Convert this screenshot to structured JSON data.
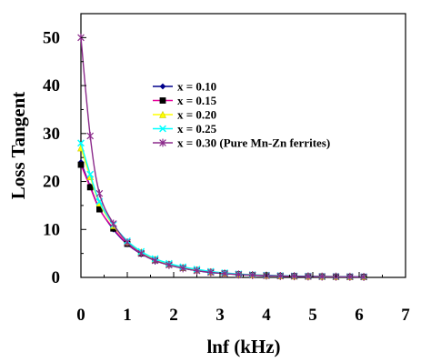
{
  "chart_data": {
    "type": "line",
    "xlabel": "lnf (kHz)",
    "ylabel": "Loss Tangent",
    "xlim": [
      0,
      7
    ],
    "ylim": [
      0,
      55
    ],
    "x_ticks": [
      "0",
      "1",
      "2",
      "3",
      "4",
      "5",
      "6",
      "7"
    ],
    "y_ticks": [
      "0",
      "10",
      "20",
      "30",
      "40",
      "50"
    ],
    "grid": false,
    "legend_position": "upper-middle",
    "series": [
      {
        "name": "x = 0.10",
        "color": "#00008b",
        "marker": "diamond",
        "x": [
          0.0,
          0.2,
          0.4,
          0.7,
          1.0,
          1.3,
          1.6,
          1.9,
          2.2,
          2.5,
          2.8,
          3.1,
          3.4,
          3.7,
          4.0,
          4.3,
          4.6,
          4.9,
          5.2,
          5.5,
          5.8,
          6.1
        ],
        "values": [
          24.0,
          19.0,
          14.3,
          10.0,
          6.9,
          4.9,
          3.5,
          2.6,
          1.9,
          1.4,
          1.0,
          0.8,
          0.6,
          0.45,
          0.35,
          0.3,
          0.25,
          0.2,
          0.18,
          0.15,
          0.13,
          0.1
        ]
      },
      {
        "name": "x = 0.15",
        "color": "#e6009a",
        "marker": "square",
        "x": [
          0.0,
          0.2,
          0.4,
          0.7,
          1.0,
          1.3,
          1.6,
          1.9,
          2.2,
          2.5,
          2.8,
          3.1,
          3.4,
          3.7,
          4.0,
          4.3,
          4.6,
          4.9,
          5.2,
          5.5,
          5.8,
          6.1
        ],
        "values": [
          23.5,
          18.8,
          14.2,
          10.2,
          7.0,
          5.0,
          3.6,
          2.7,
          2.0,
          1.5,
          1.1,
          0.85,
          0.65,
          0.5,
          0.4,
          0.32,
          0.27,
          0.22,
          0.19,
          0.16,
          0.14,
          0.12
        ]
      },
      {
        "name": "x = 0.20",
        "color": "#ffff00",
        "marker": "triangle",
        "x": [
          0.0,
          0.2,
          0.4,
          0.7,
          1.0,
          1.3,
          1.6,
          1.9,
          2.2,
          2.5,
          2.8,
          3.1,
          3.4,
          3.7,
          4.0,
          4.3,
          4.6,
          4.9,
          5.2,
          5.5,
          5.8,
          6.1
        ],
        "values": [
          27.0,
          21.0,
          15.5,
          10.8,
          7.4,
          5.3,
          3.8,
          2.8,
          2.1,
          1.6,
          1.2,
          0.9,
          0.7,
          0.55,
          0.45,
          0.35,
          0.28,
          0.23,
          0.2,
          0.17,
          0.15,
          0.13
        ]
      },
      {
        "name": "x = 0.25",
        "color": "#00ffff",
        "marker": "cross",
        "x": [
          0.0,
          0.2,
          0.4,
          0.7,
          1.0,
          1.3,
          1.6,
          1.9,
          2.2,
          2.5,
          2.8,
          3.1,
          3.4,
          3.7,
          4.0,
          4.3,
          4.6,
          4.9,
          5.2,
          5.5,
          5.8,
          6.1
        ],
        "values": [
          28.0,
          21.5,
          15.8,
          11.0,
          7.6,
          5.4,
          3.9,
          2.9,
          2.2,
          1.7,
          1.25,
          0.95,
          0.72,
          0.56,
          0.46,
          0.36,
          0.29,
          0.24,
          0.21,
          0.18,
          0.16,
          0.14
        ]
      },
      {
        "name": "x = 0.30 (Pure Mn-Zn ferrites)",
        "color": "#8b2a8b",
        "marker": "star",
        "x": [
          0.0,
          0.2,
          0.4,
          0.7,
          1.0,
          1.3,
          1.6,
          1.9,
          2.2,
          2.5,
          2.8,
          3.1,
          3.4,
          3.7,
          4.0,
          4.3,
          4.6,
          4.9,
          5.2,
          5.5,
          5.8,
          6.1
        ],
        "values": [
          50.0,
          29.5,
          17.5,
          11.2,
          7.3,
          5.0,
          3.5,
          2.6,
          1.9,
          1.4,
          1.05,
          0.8,
          0.6,
          0.48,
          0.38,
          0.3,
          0.25,
          0.2,
          0.17,
          0.15,
          0.13,
          0.11
        ]
      }
    ]
  }
}
